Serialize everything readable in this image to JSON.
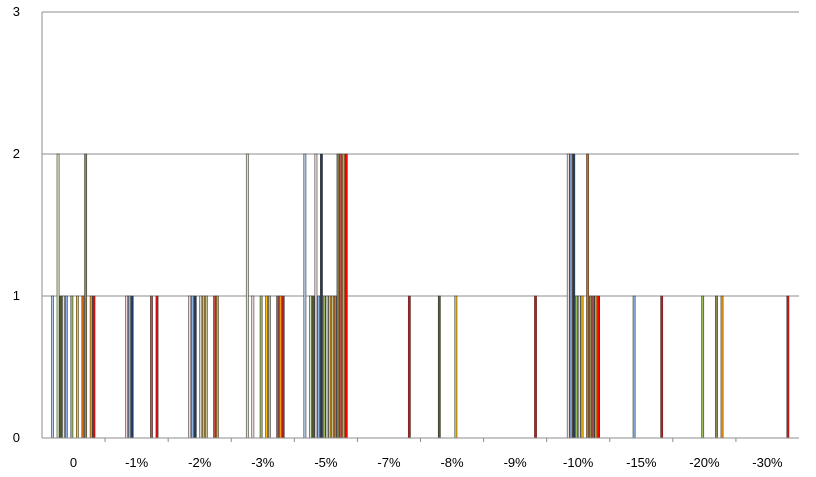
{
  "chart_data": {
    "type": "bar",
    "categories": [
      "0",
      "-1%",
      "-2%",
      "-3%",
      "-5%",
      "-7%",
      "-8%",
      "-9%",
      "-10%",
      "-15%",
      "-20%",
      "-30%"
    ],
    "yticks": [
      "0",
      "1",
      "2",
      "3"
    ],
    "ylim": [
      0,
      3
    ],
    "grid": true,
    "series": [
      {
        "color": "#b8cce4",
        "values": [
          1,
          0,
          0,
          0,
          2,
          0,
          0,
          0,
          0,
          0,
          0,
          0
        ]
      },
      {
        "color": "#fdf5c7",
        "values": [
          0,
          0,
          0,
          0,
          0,
          0,
          0,
          0,
          0,
          0,
          0,
          0
        ]
      },
      {
        "color": "#d8e4bc",
        "values": [
          2,
          0,
          0,
          2,
          1,
          0,
          0,
          0,
          0,
          0,
          0,
          0
        ]
      },
      {
        "color": "#4f6228",
        "values": [
          1,
          0,
          0,
          0,
          1,
          0,
          1,
          0,
          0,
          0,
          0,
          0
        ]
      },
      {
        "color": "#f2dcdb",
        "values": [
          1,
          1,
          1,
          1,
          2,
          0,
          0,
          0,
          2,
          0,
          0,
          0
        ]
      },
      {
        "color": "#8db4e2",
        "values": [
          1,
          1,
          1,
          0,
          1,
          0,
          0,
          0,
          2,
          1,
          0,
          0
        ]
      },
      {
        "color": "#1f3864",
        "values": [
          0,
          1,
          1,
          0,
          2,
          0,
          0,
          0,
          2,
          0,
          0,
          0
        ]
      },
      {
        "color": "#9bbb59",
        "values": [
          1,
          0,
          0,
          1,
          1,
          0,
          0,
          0,
          1,
          0,
          1,
          0
        ]
      },
      {
        "color": "#d9d9d9",
        "values": [
          0,
          0,
          1,
          0,
          1,
          0,
          0,
          0,
          1,
          0,
          0,
          0
        ]
      },
      {
        "color": "#ffc000",
        "values": [
          1,
          0,
          1,
          1,
          1,
          0,
          1,
          0,
          1,
          0,
          0,
          0
        ]
      },
      {
        "color": "#c4bd97",
        "values": [
          0,
          0,
          1,
          1,
          1,
          0,
          0,
          0,
          0,
          0,
          0,
          0
        ]
      },
      {
        "color": "#e46c0a",
        "values": [
          1,
          0,
          0,
          0,
          1,
          0,
          0,
          0,
          2,
          0,
          0,
          0
        ]
      },
      {
        "color": "#938953",
        "values": [
          2,
          0,
          0,
          0,
          2,
          0,
          0,
          0,
          1,
          0,
          1,
          0
        ]
      },
      {
        "color": "#c0504d",
        "values": [
          0,
          1,
          1,
          1,
          2,
          0,
          0,
          0,
          1,
          0,
          0,
          0
        ]
      },
      {
        "color": "#ff9900",
        "values": [
          1,
          0,
          1,
          1,
          2,
          0,
          0,
          0,
          1,
          0,
          1,
          0
        ]
      },
      {
        "color": "#ff0000",
        "values": [
          1,
          1,
          0,
          1,
          2,
          1,
          0,
          1,
          1,
          1,
          0,
          1
        ]
      }
    ]
  }
}
